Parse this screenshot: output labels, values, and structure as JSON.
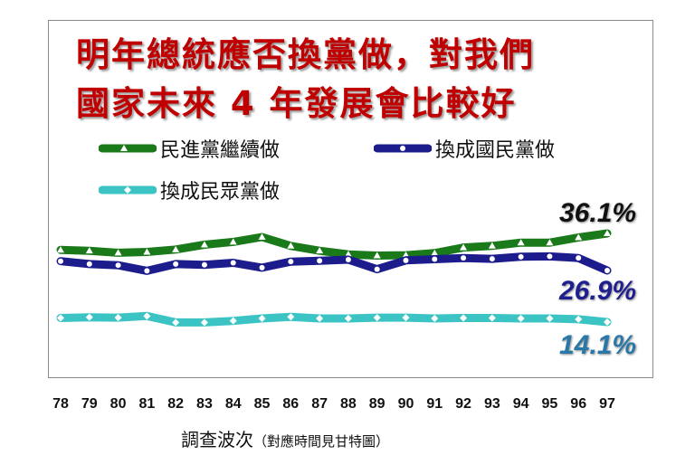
{
  "title_line1": "明年總統應否換黨做，對我們",
  "title_line2": "國家未來 4 年發展會比較好",
  "legend": [
    {
      "label": "民進黨繼續做",
      "color": "#1a7a1a"
    },
    {
      "label": "換成國民黨做",
      "color": "#1c1c8c"
    },
    {
      "label": "換成民眾黨做",
      "color": "#3cc4c4"
    }
  ],
  "end_labels": [
    "36.1%",
    "26.9%",
    "14.1%"
  ],
  "xlabel": "調查波次",
  "xlabel_note": "（對應時間見甘特圖）",
  "chart_data": {
    "type": "line",
    "title": "明年總統應否換黨做，對我們國家未來 4 年發展會比較好",
    "xlabel": "調查波次（對應時間見甘特圖）",
    "ylabel": "",
    "categories": [
      "78",
      "79",
      "80",
      "81",
      "82",
      "83",
      "84",
      "85",
      "86",
      "87",
      "88",
      "89",
      "90",
      "91",
      "92",
      "93",
      "94",
      "95",
      "96",
      "97"
    ],
    "series": [
      {
        "name": "民進黨繼續做",
        "color": "#1a7a1a",
        "values": [
          32.0,
          31.8,
          31.3,
          31.5,
          32.1,
          33.3,
          34.0,
          35.2,
          33.0,
          31.8,
          30.9,
          30.6,
          30.7,
          31.2,
          32.6,
          33.0,
          33.8,
          33.8,
          35.1,
          36.1
        ]
      },
      {
        "name": "換成國民黨做",
        "color": "#1c1c8c",
        "values": [
          29.2,
          28.5,
          28.2,
          26.8,
          28.5,
          28.3,
          28.8,
          27.6,
          29.1,
          29.3,
          29.6,
          27.2,
          29.4,
          29.7,
          30.0,
          29.8,
          30.3,
          30.4,
          30.0,
          26.9
        ]
      },
      {
        "name": "換成民眾黨做",
        "color": "#3cc4c4",
        "values": [
          15.1,
          15.3,
          15.2,
          15.6,
          14.0,
          14.0,
          14.4,
          15.0,
          15.4,
          15.0,
          15.0,
          15.2,
          15.2,
          15.0,
          15.1,
          15.1,
          15.0,
          15.0,
          14.8,
          14.1
        ]
      }
    ]
  }
}
